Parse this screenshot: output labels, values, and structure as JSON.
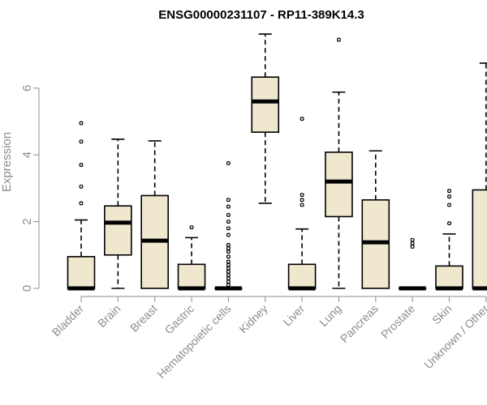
{
  "chart_data": {
    "type": "boxplot",
    "title": "ENSG00000231107 - RP11-389K14.3",
    "xlabel": "",
    "ylabel": "Expression",
    "ylim": [
      0,
      7.7
    ],
    "yticks": [
      0,
      2,
      4,
      6
    ],
    "categories": [
      "Bladder",
      "Brain",
      "Breast",
      "Gastric",
      "Hematopoietic cells",
      "Kidney",
      "Liver",
      "Lung",
      "Pancreas",
      "Prostate",
      "Skin",
      "Unknown / Other"
    ],
    "boxes": [
      {
        "name": "Bladder",
        "q1": 0,
        "median": 0,
        "q3": 0.95,
        "whisker_low": 0,
        "whisker_high": 2.05,
        "outliers": [
          2.55,
          3.05,
          3.7,
          4.4,
          4.95
        ]
      },
      {
        "name": "Brain",
        "q1": 1.0,
        "median": 1.97,
        "q3": 2.47,
        "whisker_low": 0,
        "whisker_high": 4.47,
        "outliers": []
      },
      {
        "name": "Breast",
        "q1": 0,
        "median": 1.43,
        "q3": 2.78,
        "whisker_low": 0,
        "whisker_high": 4.42,
        "outliers": []
      },
      {
        "name": "Gastric",
        "q1": 0,
        "median": 0,
        "q3": 0.72,
        "whisker_low": 0,
        "whisker_high": 1.52,
        "outliers": [
          1.83
        ]
      },
      {
        "name": "Hematopoietic cells",
        "q1": 0,
        "median": 0,
        "q3": 0,
        "whisker_low": 0,
        "whisker_high": 0,
        "outliers": [
          0.1,
          0.2,
          0.3,
          0.4,
          0.5,
          0.6,
          0.7,
          0.8,
          0.95,
          1.1,
          1.2,
          1.3,
          1.6,
          1.8,
          2.0,
          2.2,
          2.45,
          2.65,
          3.75
        ]
      },
      {
        "name": "Kidney",
        "q1": 4.68,
        "median": 5.6,
        "q3": 6.33,
        "whisker_low": 2.55,
        "whisker_high": 7.62,
        "outliers": []
      },
      {
        "name": "Liver",
        "q1": 0,
        "median": 0,
        "q3": 0.72,
        "whisker_low": 0,
        "whisker_high": 1.78,
        "outliers": [
          2.5,
          2.65,
          2.8,
          5.08
        ]
      },
      {
        "name": "Lung",
        "q1": 2.15,
        "median": 3.2,
        "q3": 4.08,
        "whisker_low": 0,
        "whisker_high": 5.88,
        "outliers": [
          7.45
        ]
      },
      {
        "name": "Pancreas",
        "q1": 0,
        "median": 1.38,
        "q3": 2.65,
        "whisker_low": 0,
        "whisker_high": 4.12,
        "outliers": []
      },
      {
        "name": "Prostate",
        "q1": 0,
        "median": 0,
        "q3": 0,
        "whisker_low": 0,
        "whisker_high": 0,
        "outliers": [
          1.25,
          1.35,
          1.45
        ]
      },
      {
        "name": "Skin",
        "q1": 0,
        "median": 0,
        "q3": 0.67,
        "whisker_low": 0,
        "whisker_high": 1.63,
        "outliers": [
          1.95,
          2.5,
          2.75,
          2.92
        ]
      },
      {
        "name": "Unknown / Other",
        "q1": 0,
        "median": 0,
        "q3": 2.95,
        "whisker_low": 0,
        "whisker_high": 6.75,
        "outliers": []
      }
    ],
    "colors": {
      "box_fill": "#efe8cf",
      "stroke": "#000000",
      "axis": "#8c8c8c"
    }
  }
}
